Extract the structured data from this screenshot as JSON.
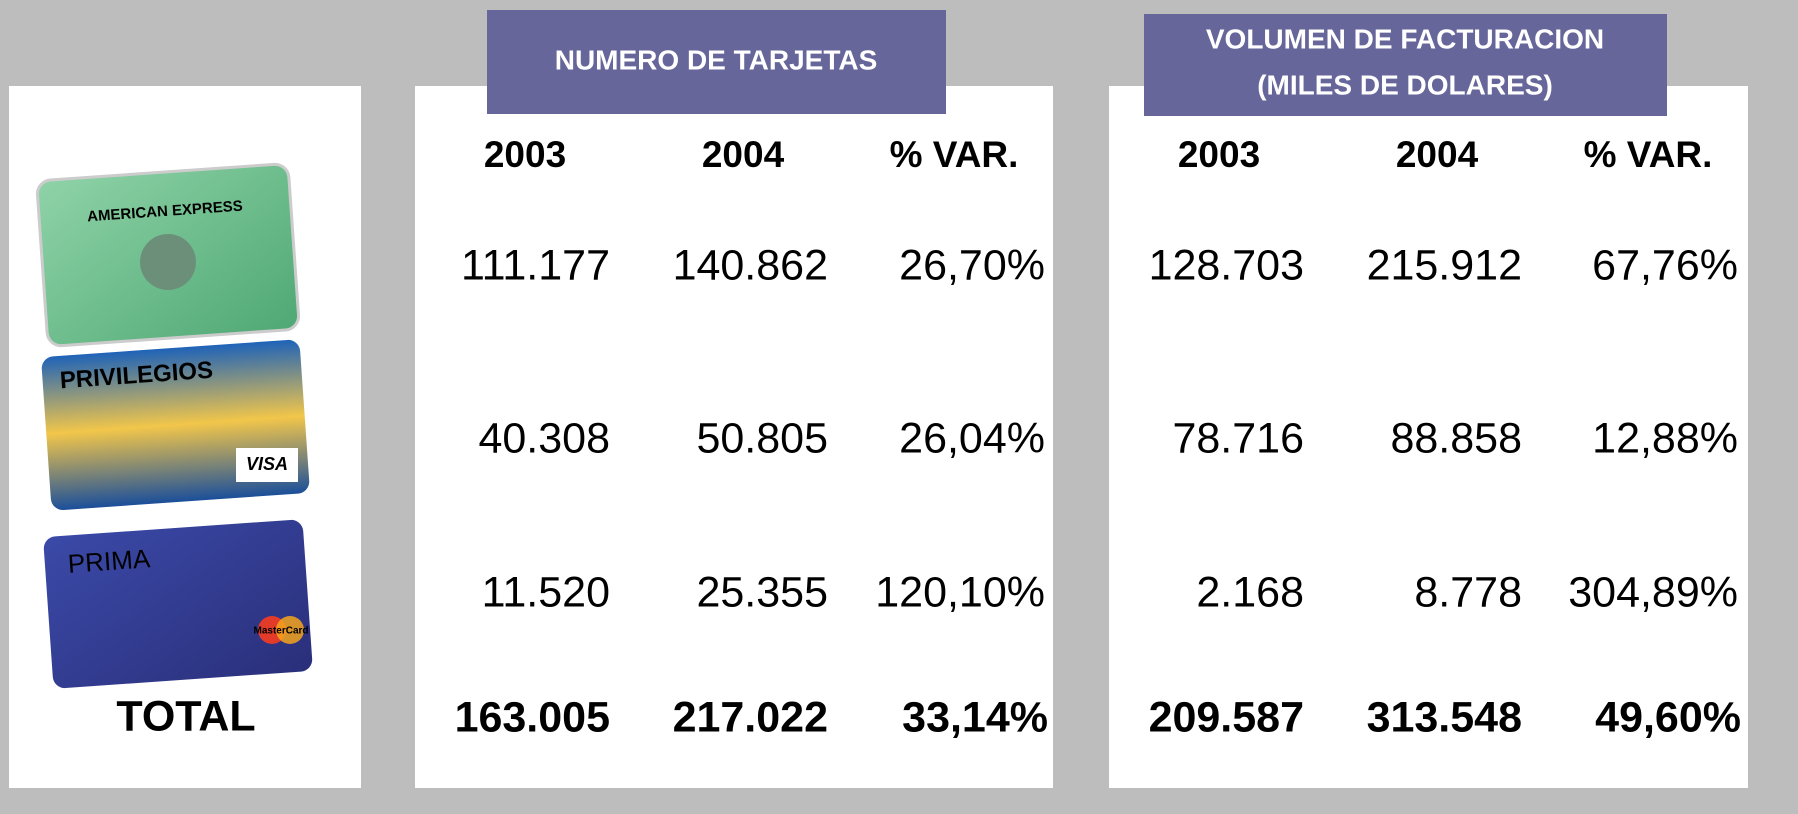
{
  "cards": [
    {
      "brand": "AMERICAN EXPRESS"
    },
    {
      "brand": "PRIVILEGIOS",
      "network": "VISA"
    },
    {
      "brand": "PRIMA",
      "network": "MasterCard"
    }
  ],
  "total_label": "TOTAL",
  "tarjetas": {
    "title": [
      "NUMERO DE TARJETAS"
    ],
    "columns": [
      "2003",
      "2004",
      "% VAR."
    ],
    "rows": [
      [
        "111.177",
        "140.862",
        "26,70%"
      ],
      [
        "40.308",
        "50.805",
        "26,04%"
      ],
      [
        "11.520",
        "25.355",
        "120,10%"
      ],
      [
        "163.005",
        "217.022",
        "33,14%"
      ]
    ]
  },
  "volumen": {
    "title": [
      "VOLUMEN DE FACTURACION",
      "(MILES DE DOLARES)"
    ],
    "columns": [
      "2003",
      "2004",
      "% VAR."
    ],
    "rows": [
      [
        "128.703",
        "215.912",
        "67,76%"
      ],
      [
        "78.716",
        "88.858",
        "12,88%"
      ],
      [
        "2.168",
        "8.778",
        "304,89%"
      ],
      [
        "209.587",
        "313.548",
        "49,60%"
      ]
    ]
  }
}
